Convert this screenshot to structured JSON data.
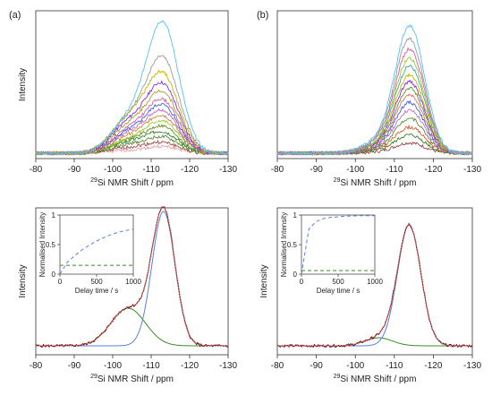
{
  "panel_labels": [
    "(a)",
    "(b)"
  ],
  "chart_data": [
    {
      "panel": "(a) top",
      "type": "line",
      "xlabel_sup": "29",
      "xlabel": "Si NMR Shift / ppm",
      "ylabel": "Intensity",
      "xlim": [
        -80,
        -130
      ],
      "x_ticks": [
        -80,
        -90,
        -100,
        -110,
        -120,
        -130
      ],
      "y_ticks_shown": false,
      "note": "Stacked variable-delay spectra; peak intensity grows with delay",
      "series_colors": [
        "#e8a0a0",
        "#a04a4a",
        "#5b8c3a",
        "#2f7f2f",
        "#6a8f2a",
        "#9acd32",
        "#d08040",
        "#c070c0",
        "#4060d0",
        "#d060a0",
        "#a0a030",
        "#8a2be2",
        "#c8b400",
        "#999999",
        "#5bc0eb"
      ],
      "peak_position": -113,
      "shoulder_position": -104,
      "peak_heights": [
        0.05,
        0.08,
        0.12,
        0.16,
        0.2,
        0.24,
        0.28,
        0.32,
        0.36,
        0.4,
        0.46,
        0.52,
        0.6,
        0.73,
        1.0
      ],
      "shoulder_heights": [
        0.02,
        0.04,
        0.06,
        0.08,
        0.09,
        0.1,
        0.12,
        0.14,
        0.15,
        0.17,
        0.2,
        0.22,
        0.26,
        0.24,
        0.24
      ]
    },
    {
      "panel": "(b) top",
      "type": "line",
      "xlabel_sup": "29",
      "xlabel": "Si NMR Shift / ppm",
      "ylabel": "",
      "xlim": [
        -80,
        -130
      ],
      "x_ticks": [
        -80,
        -90,
        -100,
        -110,
        -120,
        -130
      ],
      "note": "Stacked variable-delay spectra",
      "series_colors": [
        "#a04a4a",
        "#2f7f2f",
        "#d06030",
        "#5b8c3a",
        "#c070c0",
        "#4060d0",
        "#e07070",
        "#6a8f2a",
        "#8a2be2",
        "#c8b400",
        "#40a0a0",
        "#9acd32",
        "#d060a0",
        "#999999",
        "#5bc0eb"
      ],
      "peak_position": -114,
      "peak_heights": [
        0.08,
        0.14,
        0.2,
        0.27,
        0.33,
        0.39,
        0.45,
        0.5,
        0.55,
        0.6,
        0.67,
        0.73,
        0.8,
        0.88,
        0.98
      ]
    },
    {
      "panel": "(a) bottom",
      "type": "line",
      "xlabel_sup": "29",
      "xlabel": "Si NMR Shift / ppm",
      "ylabel": "Intensity",
      "xlim": [
        -80,
        -130
      ],
      "x_ticks": [
        -80,
        -90,
        -100,
        -110,
        -120,
        -130
      ],
      "components": [
        {
          "role": "data",
          "color": "#6b0f0f"
        },
        {
          "role": "fit",
          "color": "#e87070"
        },
        {
          "role": "Q4 component",
          "color": "#5a7fdc",
          "center": -113.2,
          "height": 1.0
        },
        {
          "role": "Q3 component",
          "color": "#3a8a2a",
          "center": -104,
          "height": 0.28
        }
      ],
      "inset": {
        "type": "line",
        "xlabel": "Delay time / s",
        "ylabel": "Normalised Intensity",
        "xlim": [
          0,
          1000
        ],
        "ylim": [
          0,
          1
        ],
        "x_ticks": [
          0,
          500,
          1000
        ],
        "y_ticks": [
          0,
          0.5,
          1
        ],
        "series": [
          {
            "color": "#5a7fdc",
            "x": [
              0,
              100,
              200,
              300,
              400,
              500,
              600,
              700,
              800,
              900,
              1000
            ],
            "values": [
              0,
              0.2,
              0.31,
              0.41,
              0.49,
              0.56,
              0.62,
              0.67,
              0.71,
              0.74,
              0.76
            ]
          },
          {
            "color": "#3a8a2a",
            "x": [
              0,
              100,
              200,
              300,
              400,
              500,
              600,
              700,
              800,
              900,
              1000
            ],
            "values": [
              0.15,
              0.15,
              0.15,
              0.15,
              0.15,
              0.15,
              0.15,
              0.15,
              0.15,
              0.15,
              0.15
            ]
          }
        ]
      }
    },
    {
      "panel": "(b) bottom",
      "type": "line",
      "xlabel_sup": "29",
      "xlabel": "Si NMR Shift / ppm",
      "ylabel": "Intensity",
      "xlim": [
        -80,
        -130
      ],
      "x_ticks": [
        -80,
        -90,
        -100,
        -110,
        -120,
        -130
      ],
      "components": [
        {
          "role": "data",
          "color": "#6b0f0f"
        },
        {
          "role": "fit",
          "color": "#e87070"
        },
        {
          "role": "Q4 component",
          "color": "#5a7fdc",
          "center": -113.8,
          "height": 0.9
        },
        {
          "role": "Q3 component",
          "color": "#3a8a2a",
          "center": -106,
          "height": 0.06
        }
      ],
      "inset": {
        "type": "line",
        "xlabel": "Delay time / s",
        "ylabel": "Normalised Intensity",
        "xlim": [
          0,
          1000
        ],
        "ylim": [
          0,
          1
        ],
        "x_ticks": [
          0,
          500,
          1000
        ],
        "y_ticks": [
          0,
          0.5,
          1
        ],
        "series": [
          {
            "color": "#5a7fdc",
            "x": [
              0,
              100,
              200,
              300,
              400,
              500,
              600,
              700,
              800,
              900,
              1000
            ],
            "values": [
              0,
              0.76,
              0.89,
              0.94,
              0.96,
              0.97,
              0.98,
              0.985,
              0.99,
              0.99,
              0.99
            ]
          },
          {
            "color": "#3a8a2a",
            "x": [
              0,
              100,
              200,
              300,
              400,
              500,
              600,
              700,
              800,
              900,
              1000
            ],
            "values": [
              0.06,
              0.06,
              0.06,
              0.06,
              0.06,
              0.06,
              0.06,
              0.06,
              0.06,
              0.06,
              0.06
            ]
          }
        ]
      }
    }
  ]
}
